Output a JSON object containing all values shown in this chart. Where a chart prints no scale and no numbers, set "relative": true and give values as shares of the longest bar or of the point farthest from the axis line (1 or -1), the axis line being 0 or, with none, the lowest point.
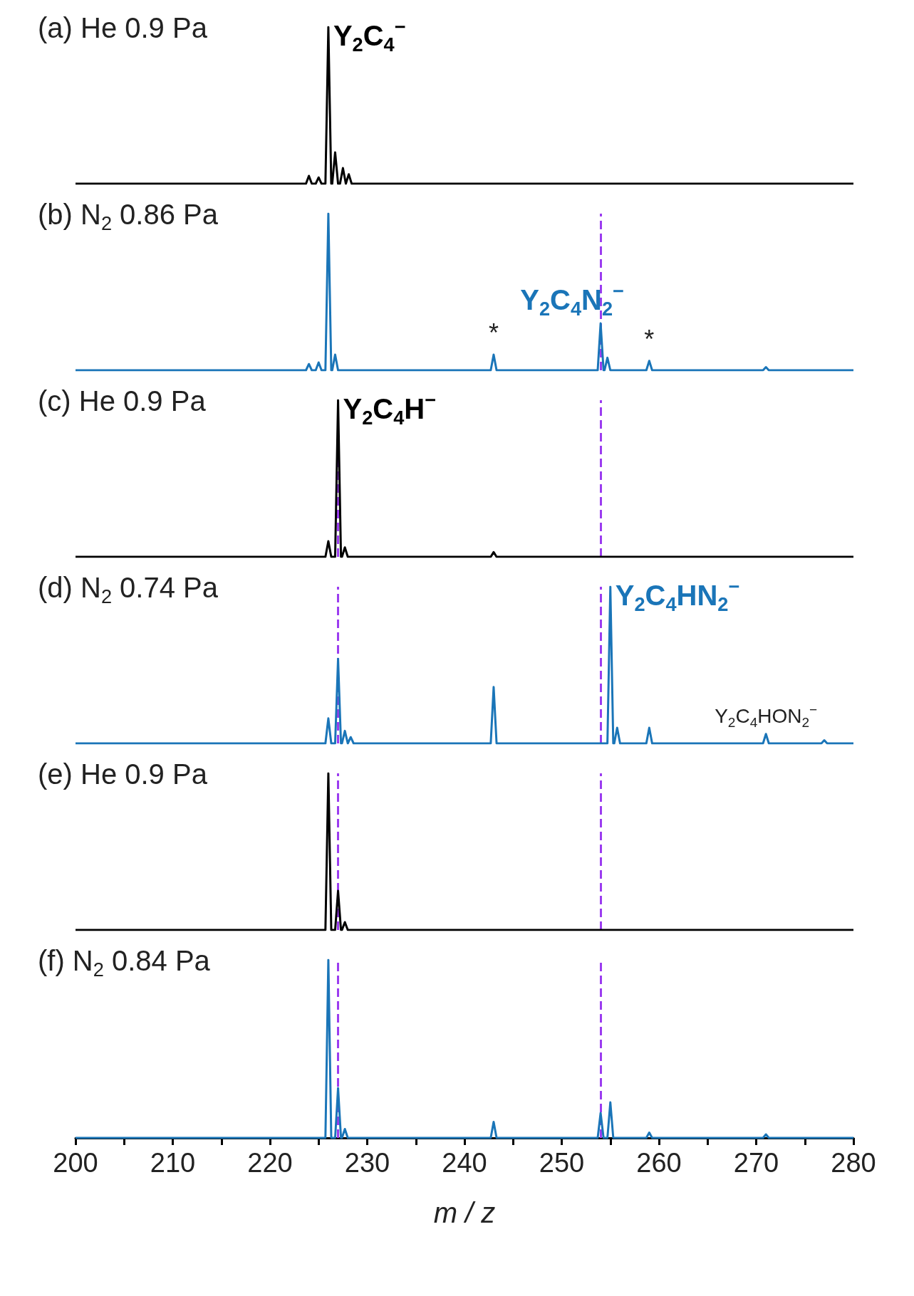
{
  "chart_data": [
    {
      "type": "line",
      "title": "(a) He 0.9 Pa",
      "relative": true,
      "xlim": [
        200,
        280
      ],
      "tick_labels": false,
      "color": "#000000",
      "x": [
        200,
        223.7,
        224,
        224.3,
        224.7,
        225,
        225.3,
        225.7,
        226,
        226.3,
        226.4,
        226.7,
        227,
        227.2,
        227.5,
        227.8,
        228.1,
        228.4,
        280
      ],
      "values": [
        0,
        0,
        0.05,
        0,
        0,
        0.04,
        0,
        0,
        1,
        0,
        0,
        0.2,
        0,
        0,
        0.1,
        0,
        0.06,
        0,
        0
      ],
      "annotations": [
        {
          "text": "Y$_{2}$C$_{4}$$^{−}$",
          "x": 226,
          "y": 1
        }
      ]
    },
    {
      "type": "line",
      "title": "(b) N$_{2}$ 0.86 Pa",
      "relative": true,
      "xlim": [
        200,
        280
      ],
      "tick_labels": false,
      "color": "#1a75b8",
      "x": [
        200,
        223.7,
        224,
        224.3,
        224.7,
        225,
        225.3,
        225.7,
        226,
        226.3,
        226.4,
        226.7,
        227,
        242.7,
        243,
        243.3,
        253.7,
        254,
        254.3,
        254.4,
        254.7,
        255,
        258.7,
        259,
        259.3,
        270.7,
        271,
        271.3,
        280
      ],
      "values": [
        0,
        0,
        0.04,
        0,
        0,
        0.05,
        0,
        0,
        1,
        0,
        0,
        0.1,
        0,
        0,
        0.1,
        0,
        0,
        0.3,
        0,
        0,
        0.08,
        0,
        0,
        0.06,
        0,
        0,
        0.02,
        0,
        0
      ],
      "annotations": [
        {
          "text": "Y$_{2}$C$_{4}$N$_{2}$$^{−}$",
          "x": 254,
          "y": 0.3
        },
        {
          "text": "*",
          "x": 243,
          "y": 0.1
        },
        {
          "text": "*",
          "x": 259,
          "y": 0.06
        }
      ],
      "ref_lines": [
        {
          "axis": "x",
          "value": 254,
          "color": "#9b3cf0",
          "line_style": "dashed"
        }
      ]
    },
    {
      "type": "line",
      "title": "(c) He 0.9 Pa",
      "relative": true,
      "xlim": [
        200,
        280
      ],
      "tick_labels": false,
      "color": "#000000",
      "x": [
        200,
        225.7,
        226,
        226.3,
        226.7,
        227,
        227.3,
        227.4,
        227.7,
        228,
        242.7,
        243,
        243.3,
        280
      ],
      "values": [
        0,
        0,
        0.1,
        0,
        0,
        1,
        0,
        0,
        0.06,
        0,
        0,
        0.03,
        0,
        0
      ],
      "annotations": [
        {
          "text": "Y$_{2}$C$_{4}$H$^{−}$",
          "x": 227,
          "y": 1
        }
      ],
      "ref_lines": [
        {
          "axis": "x",
          "value": 227,
          "color": "#9b3cf0",
          "line_style": "dashed"
        },
        {
          "axis": "x",
          "value": 254,
          "color": "#9b3cf0",
          "line_style": "dashed"
        }
      ]
    },
    {
      "type": "line",
      "title": "(d) N$_{2}$ 0.74 Pa",
      "relative": true,
      "xlim": [
        200,
        280
      ],
      "tick_labels": false,
      "color": "#1a75b8",
      "x": [
        200,
        225.7,
        226,
        226.3,
        226.7,
        227,
        227.3,
        227.4,
        227.7,
        228,
        228.3,
        228.6,
        242.7,
        243,
        243.3,
        254.7,
        255,
        255.3,
        255.4,
        255.7,
        256,
        258.7,
        259,
        259.3,
        270.7,
        271,
        271.3,
        276.7,
        277,
        277.3,
        280
      ],
      "values": [
        0,
        0,
        0.16,
        0,
        0,
        0.54,
        0,
        0,
        0.08,
        0,
        0.04,
        0,
        0,
        0.36,
        0,
        0,
        1,
        0,
        0,
        0.1,
        0,
        0,
        0.1,
        0,
        0,
        0.06,
        0,
        0,
        0.02,
        0,
        0
      ],
      "annotations": [
        {
          "text": "Y$_{2}$C$_{4}$HN$_{2}$$^{−}$",
          "x": 255,
          "y": 1
        },
        {
          "text": "Y$_{2}$C$_{4}$HON$_{2}$$^{−}$",
          "x": 271,
          "y": 0.06
        }
      ],
      "ref_lines": [
        {
          "axis": "x",
          "value": 227,
          "color": "#9b3cf0",
          "line_style": "dashed"
        },
        {
          "axis": "x",
          "value": 254,
          "color": "#9b3cf0",
          "line_style": "dashed"
        }
      ]
    },
    {
      "type": "line",
      "title": "(e) He 0.9 Pa",
      "relative": true,
      "xlim": [
        200,
        280
      ],
      "tick_labels": false,
      "color": "#000000",
      "x": [
        200,
        225.7,
        226,
        226.3,
        226.7,
        227,
        227.3,
        227.4,
        227.7,
        228,
        280
      ],
      "values": [
        0,
        0,
        1,
        0,
        0,
        0.25,
        0,
        0,
        0.05,
        0,
        0
      ],
      "ref_lines": [
        {
          "axis": "x",
          "value": 227,
          "color": "#9b3cf0",
          "line_style": "dashed"
        },
        {
          "axis": "x",
          "value": 254,
          "color": "#9b3cf0",
          "line_style": "dashed"
        }
      ]
    },
    {
      "type": "line",
      "title": "(f) N$_{2}$ 0.84 Pa",
      "relative": true,
      "xlim": [
        200,
        280
      ],
      "tick_labels": "x",
      "color": "#1a75b8",
      "xlabel": "m / z",
      "xticks": [
        200,
        {
          "value": 205,
          "label": null
        },
        210,
        {
          "value": 215,
          "label": null
        },
        220,
        {
          "value": 225,
          "label": null
        },
        230,
        {
          "value": 235,
          "label": null
        },
        240,
        {
          "value": 245,
          "label": null
        },
        250,
        {
          "value": 255,
          "label": null
        },
        260,
        {
          "value": 265,
          "label": null
        },
        270,
        {
          "value": 275,
          "label": null
        },
        280
      ],
      "x": [
        200,
        225.7,
        226,
        226.3,
        226.7,
        227,
        227.3,
        227.4,
        227.7,
        228,
        242.7,
        243,
        243.3,
        253.7,
        254,
        254.3,
        254.7,
        255,
        255.3,
        258.7,
        259,
        259.3,
        270.7,
        271,
        271.3,
        280
      ],
      "values": [
        0,
        0,
        1,
        0,
        0,
        0.28,
        0,
        0,
        0.05,
        0,
        0,
        0.09,
        0,
        0,
        0.14,
        0,
        0,
        0.2,
        0,
        0,
        0.03,
        0,
        0,
        0.02,
        0,
        0
      ],
      "ref_lines": [
        {
          "axis": "x",
          "value": 227,
          "color": "#9b3cf0",
          "line_style": "dashed"
        },
        {
          "axis": "x",
          "value": 254,
          "color": "#9b3cf0",
          "line_style": "dashed"
        }
      ]
    }
  ]
}
